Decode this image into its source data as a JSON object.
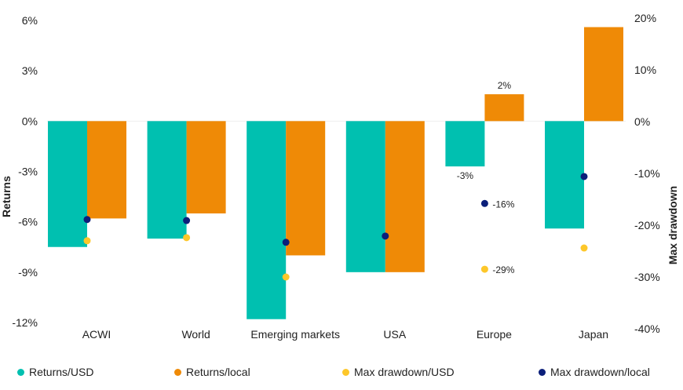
{
  "chart_data": {
    "type": "bar",
    "categories": [
      "ACWI",
      "World",
      "Emerging markets",
      "USA",
      "Europe",
      "Japan"
    ],
    "y_left": {
      "label": "Returns",
      "range": [
        -12,
        6
      ],
      "ticks": [
        "6%",
        "3%",
        "0%",
        "-3%",
        "-6%",
        "-9%",
        "-12%"
      ],
      "tick_values": [
        6,
        3,
        0,
        -3,
        -6,
        -9,
        -12
      ]
    },
    "y_right": {
      "label": "Max drawdown",
      "range": [
        -40,
        20
      ],
      "ticks": [
        "20%",
        "10%",
        "0%",
        "-10%",
        "-20%",
        "-30%",
        "-40%"
      ],
      "tick_values": [
        20,
        10,
        0,
        -10,
        -20,
        -30,
        -40
      ]
    },
    "series": [
      {
        "name": "Returns/USD",
        "kind": "bar",
        "axis": "left",
        "color": "#00c0b0",
        "values": [
          -7.5,
          -7.0,
          -11.8,
          -9.0,
          -2.7,
          -6.4
        ]
      },
      {
        "name": "Returns/local",
        "kind": "bar",
        "axis": "left",
        "color": "#ef8a06",
        "values": [
          -5.8,
          -5.5,
          -8.0,
          -9.0,
          1.6,
          5.6
        ]
      },
      {
        "name": "Max drawdown/USD",
        "kind": "dot",
        "axis": "right",
        "color": "#fdc72a",
        "values": [
          -23.0,
          -22.4,
          -30.0,
          null,
          -28.5,
          -24.4
        ]
      },
      {
        "name": "Max drawdown/local",
        "kind": "dot",
        "axis": "right",
        "color": "#0b1f7a",
        "values": [
          -18.9,
          -19.1,
          -23.3,
          -22.1,
          -15.8,
          -10.6
        ]
      }
    ],
    "annotations": [
      {
        "category": "Europe",
        "series": "Returns/USD",
        "text": "-3%"
      },
      {
        "category": "Europe",
        "series": "Returns/local",
        "text": "2%"
      },
      {
        "category": "Europe",
        "series": "Max drawdown/local",
        "text": "-16%"
      },
      {
        "category": "Europe",
        "series": "Max drawdown/USD",
        "text": "-29%"
      }
    ],
    "legend_position": "bottom",
    "grid": false
  }
}
